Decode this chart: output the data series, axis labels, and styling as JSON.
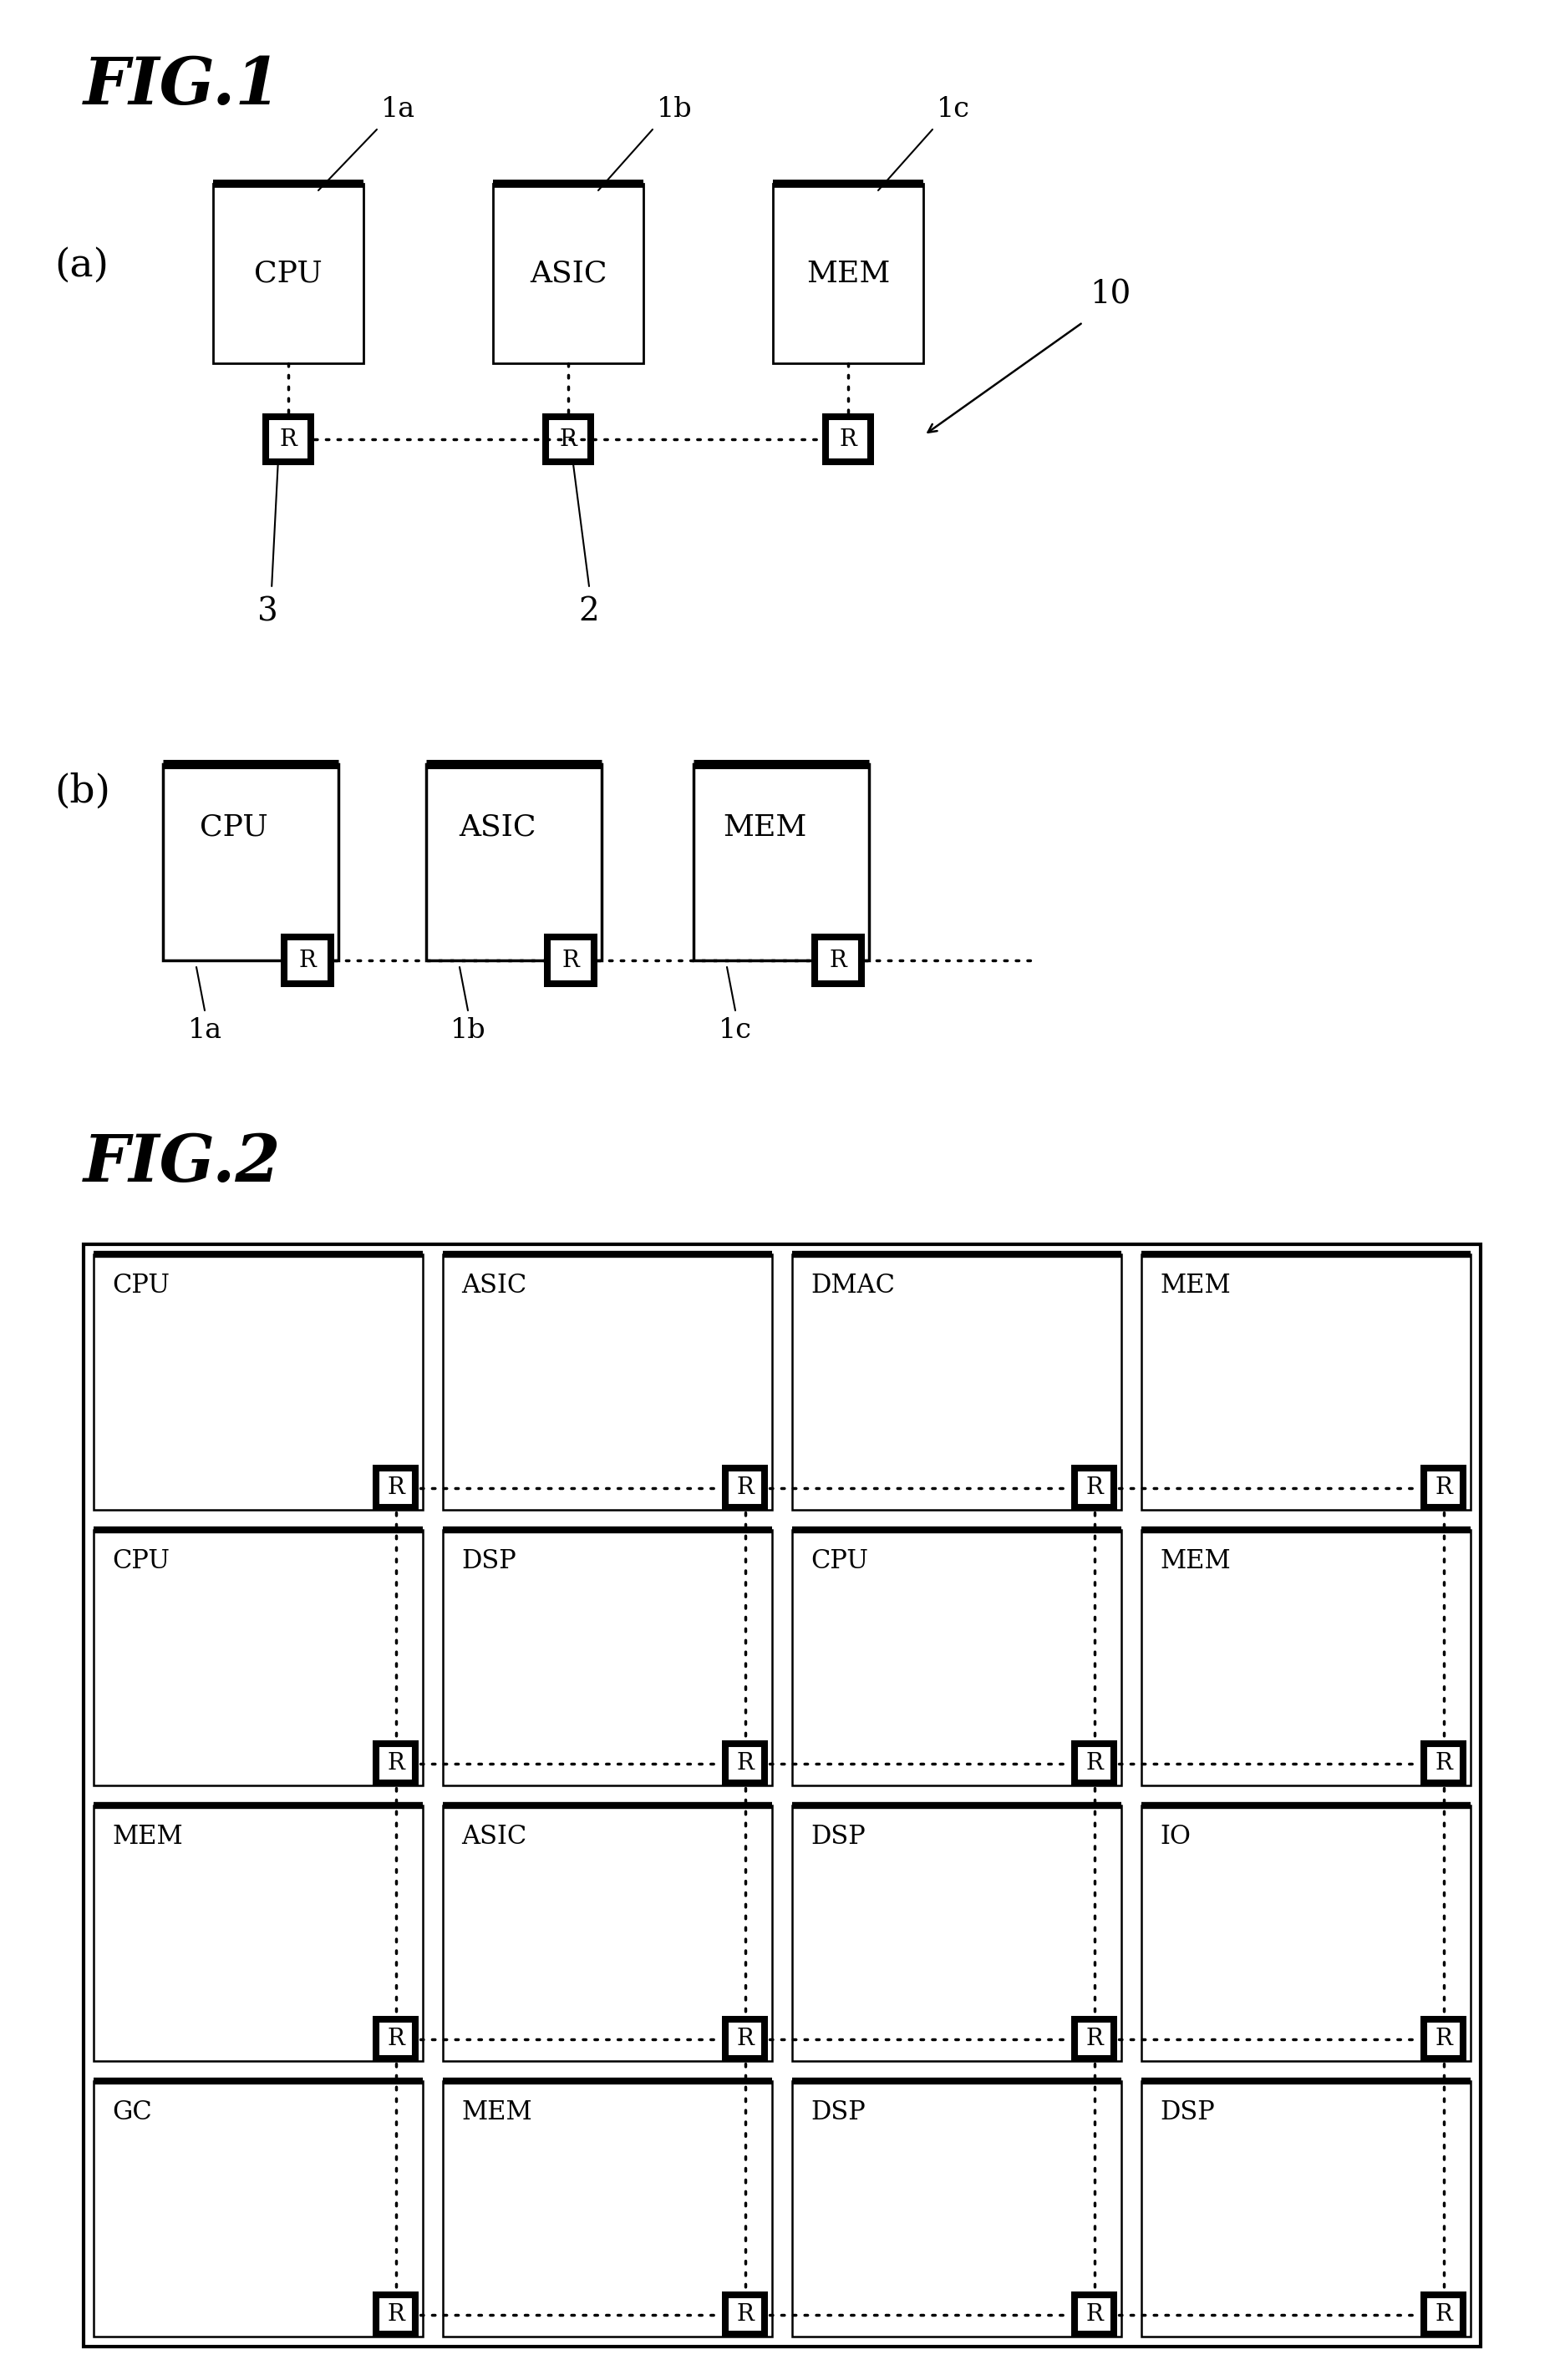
{
  "fig1_title": "FIG.1",
  "fig2_title": "FIG.2",
  "fig1a_label": "(a)",
  "fig1b_label": "(b)",
  "fig2_grid": [
    [
      "CPU",
      "ASIC",
      "DMAC",
      "MEM"
    ],
    [
      "CPU",
      "DSP",
      "CPU",
      "MEM"
    ],
    [
      "MEM",
      "ASIC",
      "DSP",
      "IO"
    ],
    [
      "GC",
      "MEM",
      "DSP",
      "DSP"
    ]
  ],
  "bg_color": "#ffffff"
}
